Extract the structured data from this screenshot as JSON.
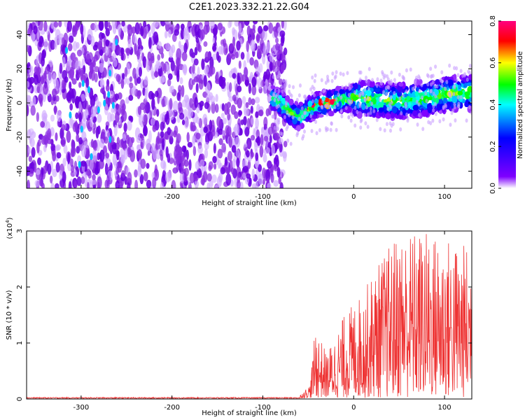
{
  "title": "C2E1.2023.332.21.22.G04",
  "chart_data": [
    {
      "type": "heatmap",
      "xlabel": "Height of straight line (km)",
      "ylabel": "Frequency (Hz)",
      "xlim": [
        -360,
        130
      ],
      "ylim": [
        -50,
        48
      ],
      "x_ticks": [
        -300,
        -200,
        -100,
        0,
        100
      ],
      "y_ticks": [
        -40,
        -20,
        0,
        20,
        40
      ],
      "colorbar": {
        "label": "Normalized spectral amplitude",
        "range": [
          0.0,
          0.8
        ],
        "ticks": [
          "0.0",
          "0.2",
          "0.4",
          "0.6",
          "0.8"
        ],
        "colors": [
          "#ffffff",
          "#7f00ff",
          "#0000ff",
          "#00ffff",
          "#00ff00",
          "#ffff00",
          "#ff0000",
          "#ff0080"
        ]
      },
      "noise_region": {
        "x_range": [
          -360,
          -75
        ],
        "amplitude_range": [
          0.0,
          0.12
        ]
      },
      "signal_ridge": [
        {
          "x": -90,
          "y": 3
        },
        {
          "x": -80,
          "y": 0
        },
        {
          "x": -70,
          "y": -6
        },
        {
          "x": -60,
          "y": -8
        },
        {
          "x": -50,
          "y": -4
        },
        {
          "x": -40,
          "y": -1
        },
        {
          "x": -20,
          "y": 1
        },
        {
          "x": 0,
          "y": 3
        },
        {
          "x": 20,
          "y": 2
        },
        {
          "x": 50,
          "y": 1
        },
        {
          "x": 80,
          "y": 3
        },
        {
          "x": 100,
          "y": 5
        },
        {
          "x": 130,
          "y": 6
        }
      ]
    },
    {
      "type": "line",
      "xlabel": "Height of straight line (km)",
      "ylabel": "SNR (10 * v/v)",
      "y_multiplier_label": "(x10",
      "y_multiplier_exp": "4",
      "y_multiplier_close": ")",
      "xlim": [
        -360,
        130
      ],
      "ylim": [
        0,
        3
      ],
      "x_ticks": [
        -300,
        -200,
        -100,
        0,
        100
      ],
      "y_ticks": [
        0,
        1,
        2,
        3
      ],
      "color": "#ee3333",
      "envelope": [
        {
          "x": -360,
          "y": 0.02
        },
        {
          "x": -60,
          "y": 0.03
        },
        {
          "x": -48,
          "y": 0.25
        },
        {
          "x": -42,
          "y": 1.3
        },
        {
          "x": -30,
          "y": 0.8
        },
        {
          "x": -10,
          "y": 1.5
        },
        {
          "x": 10,
          "y": 1.9
        },
        {
          "x": 30,
          "y": 2.5
        },
        {
          "x": 50,
          "y": 3.0
        },
        {
          "x": 80,
          "y": 3.0
        },
        {
          "x": 100,
          "y": 2.9
        },
        {
          "x": 130,
          "y": 2.7
        }
      ]
    }
  ]
}
